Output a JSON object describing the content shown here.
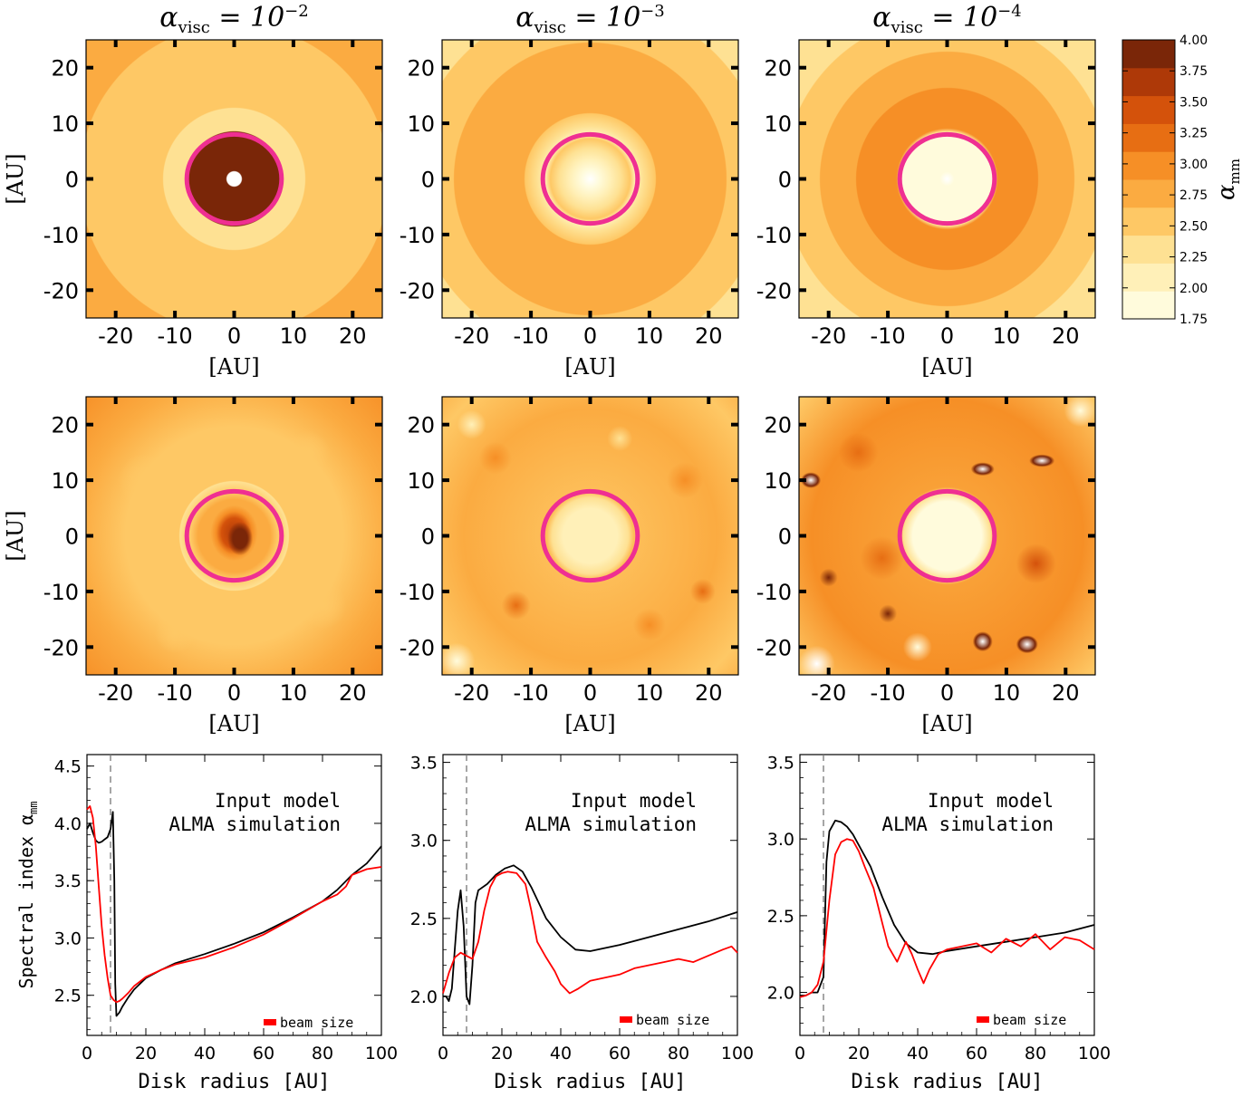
{
  "titles": {
    "col1": {
      "base": "α",
      "sub": "visc",
      "eq": " = 10",
      "exp": "−2"
    },
    "col2": {
      "base": "α",
      "sub": "visc",
      "eq": " = 10",
      "exp": "−3"
    },
    "col3": {
      "base": "α",
      "sub": "visc",
      "eq": " = 10",
      "exp": "−4"
    }
  },
  "map_axes": {
    "unit_label": "[AU]",
    "ticks": [
      "-20",
      "-10",
      "0",
      "10",
      "20"
    ],
    "tick_values": [
      -20,
      -10,
      0,
      10,
      20
    ],
    "range": [
      -25,
      25
    ]
  },
  "colorbar": {
    "label": "α",
    "label_sub": "mm",
    "ticks": [
      "4.00",
      "3.75",
      "3.50",
      "3.25",
      "3.00",
      "2.75",
      "2.50",
      "2.25",
      "2.00",
      "1.75"
    ],
    "levels": [
      1.75,
      2.0,
      2.25,
      2.5,
      2.75,
      3.0,
      3.25,
      3.5,
      3.75,
      4.0
    ],
    "colors": [
      "#fffbdc",
      "#fff0b8",
      "#fee193",
      "#fec865",
      "#fbab41",
      "#f68f26",
      "#e76e13",
      "#d4520b",
      "#ae3908",
      "#7a2608"
    ]
  },
  "ring_color": "#ef2f92",
  "profile_axes": {
    "xlabel": "Disk radius [AU]",
    "ylabel": "Spectral index α",
    "ylabel_sub": "mm",
    "xticks": [
      "0",
      "20",
      "40",
      "60",
      "80",
      "100"
    ],
    "xtick_values": [
      0,
      20,
      40,
      60,
      80,
      100
    ],
    "legend_model": "Input model",
    "legend_alma": "ALMA simulation",
    "beam_label": "beam size",
    "model_color": "#000000",
    "alma_color": "#ff0000"
  },
  "chart_data": [
    {
      "type": "line",
      "panel": "alpha_visc=1e-2 profile",
      "xlabel": "Disk radius [AU]",
      "ylabel": "Spectral index α_mm",
      "xlim": [
        0,
        100
      ],
      "ylim": [
        2.15,
        4.6
      ],
      "yticks": [
        "2.5",
        "3.0",
        "3.5",
        "4.0",
        "4.5"
      ],
      "ytick_values": [
        2.5,
        3.0,
        3.5,
        4.0,
        4.5
      ],
      "vline_x": 8,
      "series": [
        {
          "name": "Input model",
          "x": [
            0,
            1,
            2,
            3,
            4,
            5,
            6,
            7,
            8,
            8.8,
            9.3,
            9.6,
            10,
            11,
            12,
            14,
            16,
            20,
            25,
            30,
            40,
            50,
            60,
            70,
            80,
            85,
            90,
            95,
            100
          ],
          "y": [
            3.95,
            4.0,
            3.92,
            3.85,
            3.83,
            3.84,
            3.86,
            3.88,
            3.95,
            4.1,
            3.5,
            2.6,
            2.32,
            2.35,
            2.4,
            2.48,
            2.55,
            2.65,
            2.72,
            2.78,
            2.86,
            2.95,
            3.05,
            3.18,
            3.32,
            3.42,
            3.55,
            3.65,
            3.8
          ]
        },
        {
          "name": "ALMA simulation",
          "x": [
            0,
            1,
            2,
            3,
            4,
            5,
            6,
            7,
            8,
            9,
            10,
            11,
            12,
            14,
            16,
            20,
            25,
            30,
            35,
            40,
            50,
            60,
            70,
            80,
            85,
            88,
            90,
            95,
            100
          ],
          "y": [
            4.12,
            4.15,
            4.05,
            3.8,
            3.45,
            3.1,
            2.85,
            2.65,
            2.5,
            2.46,
            2.44,
            2.45,
            2.47,
            2.52,
            2.58,
            2.66,
            2.72,
            2.77,
            2.8,
            2.83,
            2.92,
            3.03,
            3.17,
            3.32,
            3.38,
            3.45,
            3.55,
            3.6,
            3.62
          ]
        }
      ]
    },
    {
      "type": "line",
      "panel": "alpha_visc=1e-3 profile",
      "xlabel": "Disk radius [AU]",
      "ylabel": "Spectral index α_mm",
      "xlim": [
        0,
        100
      ],
      "ylim": [
        1.75,
        3.55
      ],
      "yticks": [
        "2.0",
        "2.5",
        "3.0",
        "3.5"
      ],
      "ytick_values": [
        2.0,
        2.5,
        3.0,
        3.5
      ],
      "vline_x": 8,
      "series": [
        {
          "name": "Input model",
          "x": [
            0,
            1,
            2,
            3,
            4,
            5,
            6,
            7,
            8,
            9,
            10,
            11,
            12,
            15,
            18,
            21,
            24,
            27,
            30,
            35,
            40,
            45,
            50,
            60,
            70,
            80,
            90,
            100
          ],
          "y": [
            2.0,
            2.0,
            1.97,
            2.05,
            2.3,
            2.55,
            2.68,
            2.45,
            2.0,
            1.95,
            2.2,
            2.6,
            2.68,
            2.72,
            2.78,
            2.82,
            2.84,
            2.8,
            2.7,
            2.5,
            2.38,
            2.3,
            2.29,
            2.33,
            2.38,
            2.43,
            2.48,
            2.54
          ]
        },
        {
          "name": "ALMA simulation",
          "x": [
            0,
            2,
            4,
            6,
            8,
            10,
            12,
            14,
            16,
            18,
            20,
            22,
            25,
            28,
            30,
            32,
            35,
            38,
            40,
            43,
            46,
            50,
            55,
            60,
            65,
            70,
            75,
            80,
            85,
            90,
            95,
            98,
            100
          ],
          "y": [
            2.02,
            2.15,
            2.25,
            2.28,
            2.26,
            2.24,
            2.35,
            2.55,
            2.7,
            2.77,
            2.79,
            2.8,
            2.79,
            2.72,
            2.55,
            2.35,
            2.25,
            2.16,
            2.08,
            2.02,
            2.05,
            2.1,
            2.12,
            2.14,
            2.18,
            2.2,
            2.22,
            2.24,
            2.22,
            2.26,
            2.3,
            2.32,
            2.28
          ]
        }
      ]
    },
    {
      "type": "line",
      "panel": "alpha_visc=1e-4 profile",
      "xlabel": "Disk radius [AU]",
      "ylabel": "Spectral index α_mm",
      "xlim": [
        0,
        100
      ],
      "ylim": [
        1.72,
        3.55
      ],
      "yticks": [
        "2.0",
        "2.5",
        "3.0",
        "3.5"
      ],
      "ytick_values": [
        2.0,
        2.5,
        3.0,
        3.5
      ],
      "vline_x": 8,
      "series": [
        {
          "name": "Input model",
          "x": [
            0,
            2,
            4,
            6,
            8,
            9,
            10,
            12,
            14,
            16,
            18,
            20,
            24,
            28,
            32,
            36,
            40,
            45,
            50,
            60,
            70,
            80,
            90,
            100
          ],
          "y": [
            1.98,
            1.98,
            2.0,
            2.0,
            2.1,
            2.85,
            3.05,
            3.12,
            3.11,
            3.08,
            3.03,
            2.96,
            2.82,
            2.62,
            2.44,
            2.32,
            2.26,
            2.25,
            2.27,
            2.3,
            2.33,
            2.36,
            2.39,
            2.44
          ]
        },
        {
          "name": "ALMA simulation",
          "x": [
            0,
            2,
            4,
            6,
            8,
            10,
            12,
            14,
            16,
            18,
            20,
            22,
            25,
            28,
            30,
            33,
            36,
            38,
            40,
            42,
            44,
            47,
            50,
            55,
            60,
            65,
            70,
            75,
            80,
            85,
            90,
            95,
            100
          ],
          "y": [
            1.97,
            1.98,
            2.0,
            2.05,
            2.2,
            2.6,
            2.9,
            2.98,
            3.0,
            2.99,
            2.92,
            2.82,
            2.68,
            2.45,
            2.3,
            2.2,
            2.33,
            2.25,
            2.15,
            2.06,
            2.15,
            2.25,
            2.28,
            2.3,
            2.32,
            2.26,
            2.35,
            2.3,
            2.38,
            2.28,
            2.36,
            2.34,
            2.28
          ]
        }
      ]
    }
  ]
}
